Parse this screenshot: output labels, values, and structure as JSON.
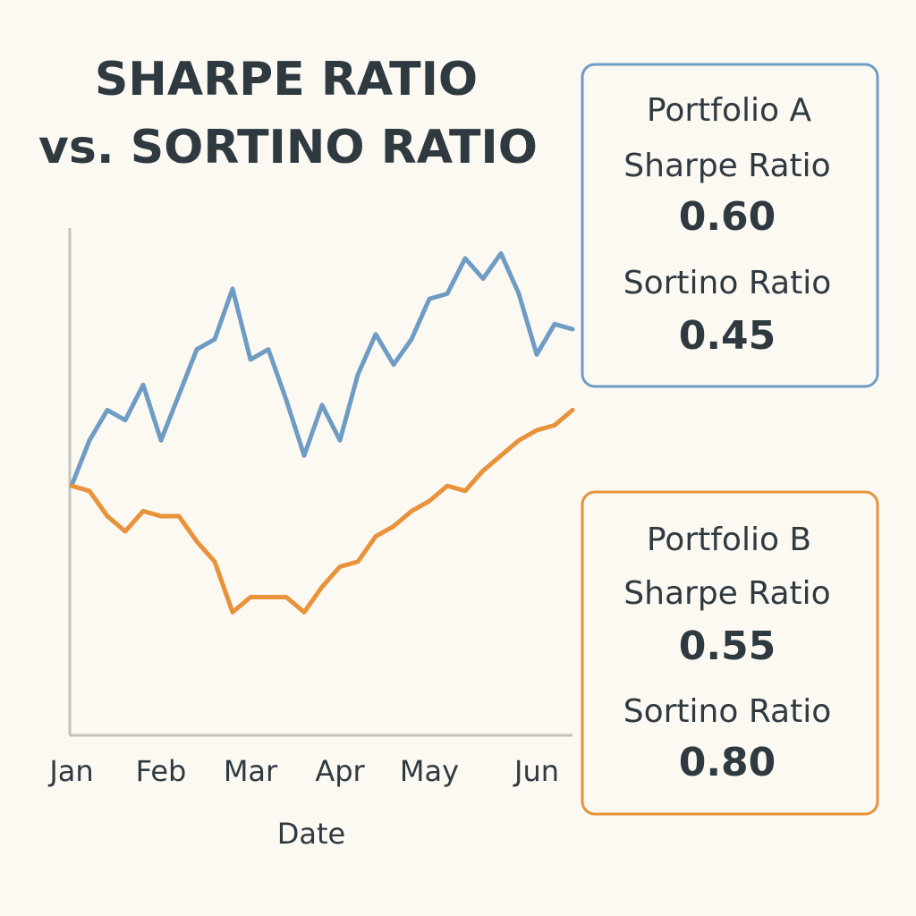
{
  "chart_data": {
    "type": "line",
    "title": [
      "SHARPE RATIO",
      "vs. SORTINO RATIO"
    ],
    "x_label": "Date",
    "categories": [
      "Jan",
      null,
      null,
      null,
      null,
      "Feb",
      null,
      null,
      null,
      null,
      "Mar",
      null,
      null,
      null,
      null,
      "Apr",
      null,
      null,
      null,
      null,
      "May",
      null,
      null,
      null,
      null,
      null,
      "Jun",
      null,
      null
    ],
    "ylim": [
      0,
      100
    ],
    "series": [
      {
        "name": "Portfolio A",
        "color": "#6f9cc4",
        "values": [
          49,
          58,
          64,
          62,
          69,
          58,
          67,
          76,
          78,
          88,
          74,
          76,
          66,
          55,
          65,
          58,
          71,
          79,
          73,
          78,
          86,
          87,
          94,
          90,
          95,
          87,
          75,
          81,
          80
        ],
        "metrics": [
          {
            "label": "Sharpe Ratio",
            "value": "0.60"
          },
          {
            "label": "Sortino Ratio",
            "value": "0.45"
          }
        ]
      },
      {
        "name": "Portfolio B",
        "color": "#e8923a",
        "values": [
          49,
          48,
          43,
          40,
          44,
          43,
          43,
          38,
          34,
          24,
          27,
          27,
          27,
          24,
          29,
          33,
          34,
          39,
          41,
          44,
          46,
          49,
          48,
          52,
          55,
          58,
          60,
          61,
          64
        ],
        "metrics": [
          {
            "label": "Sharpe Ratio",
            "value": "0.55"
          },
          {
            "label": "Sortino Ratio",
            "value": "0.80"
          }
        ]
      }
    ]
  }
}
